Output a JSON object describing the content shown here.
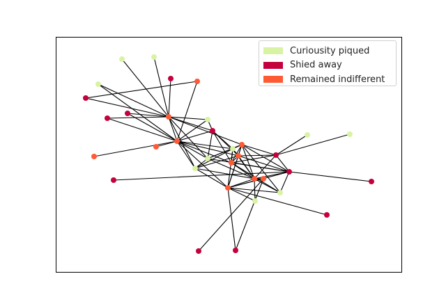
{
  "legend": {
    "items": [
      {
        "label": "Curiousity piqued",
        "color": "#d9f3a4"
      },
      {
        "label": "Shied away",
        "color": "#c5003d"
      },
      {
        "label": "Remained indifferent",
        "color": "#ff5a34"
      }
    ]
  },
  "chart_data": {
    "type": "network",
    "groups": {
      "curious": "Curiousity piqued",
      "shied": "Shied away",
      "indifferent": "Remained indifferent"
    },
    "nodes": [
      {
        "id": "n1",
        "group": "curious"
      },
      {
        "id": "n2",
        "group": "curious"
      },
      {
        "id": "n3",
        "group": "shied"
      },
      {
        "id": "n4",
        "group": "indifferent"
      },
      {
        "id": "n5",
        "group": "curious"
      },
      {
        "id": "n6",
        "group": "indifferent"
      },
      {
        "id": "n7",
        "group": "shied"
      },
      {
        "id": "n8",
        "group": "shied"
      },
      {
        "id": "n9",
        "group": "indifferent"
      },
      {
        "id": "n10",
        "group": "curious"
      },
      {
        "id": "n11",
        "group": "shied"
      },
      {
        "id": "n12",
        "group": "shied"
      },
      {
        "id": "n13",
        "group": "indifferent"
      },
      {
        "id": "n14",
        "group": "indifferent"
      },
      {
        "id": "n15",
        "group": "curious"
      },
      {
        "id": "n16",
        "group": "curious"
      },
      {
        "id": "n17",
        "group": "curious"
      },
      {
        "id": "n18",
        "group": "indifferent"
      },
      {
        "id": "n19",
        "group": "indifferent"
      },
      {
        "id": "n20",
        "group": "indifferent"
      },
      {
        "id": "n21",
        "group": "shied"
      },
      {
        "id": "n22",
        "group": "indifferent"
      },
      {
        "id": "n23",
        "group": "indifferent"
      },
      {
        "id": "n24",
        "group": "shied"
      },
      {
        "id": "n25",
        "group": "curious"
      },
      {
        "id": "n26",
        "group": "indifferent"
      },
      {
        "id": "n27",
        "group": "curious"
      },
      {
        "id": "n28",
        "group": "curious"
      },
      {
        "id": "n29",
        "group": "shied"
      },
      {
        "id": "n30",
        "group": "curious"
      },
      {
        "id": "n31",
        "group": "shied"
      },
      {
        "id": "n32",
        "group": "shied"
      },
      {
        "id": "n33",
        "group": "shied"
      },
      {
        "id": "n34",
        "group": "shied"
      }
    ],
    "edges": [
      [
        "n1",
        "n6"
      ],
      [
        "n2",
        "n6"
      ],
      [
        "n3",
        "n6"
      ],
      [
        "n5",
        "n6"
      ],
      [
        "n5",
        "n9"
      ],
      [
        "n4",
        "n7"
      ],
      [
        "n7",
        "n6"
      ],
      [
        "n8",
        "n6"
      ],
      [
        "n8",
        "n9"
      ],
      [
        "n6",
        "n9"
      ],
      [
        "n6",
        "n10"
      ],
      [
        "n6",
        "n11"
      ],
      [
        "n6",
        "n16"
      ],
      [
        "n6",
        "n18"
      ],
      [
        "n6",
        "n15"
      ],
      [
        "n4",
        "n9"
      ],
      [
        "n12",
        "n9"
      ],
      [
        "n12",
        "n6"
      ],
      [
        "n13",
        "n9"
      ],
      [
        "n14",
        "n9"
      ],
      [
        "n9",
        "n10"
      ],
      [
        "n9",
        "n11"
      ],
      [
        "n9",
        "n15"
      ],
      [
        "n9",
        "n16"
      ],
      [
        "n9",
        "n17"
      ],
      [
        "n9",
        "n19"
      ],
      [
        "n9",
        "n20"
      ],
      [
        "n9",
        "n23"
      ],
      [
        "n10",
        "n11"
      ],
      [
        "n11",
        "n15"
      ],
      [
        "n11",
        "n17"
      ],
      [
        "n11",
        "n19"
      ],
      [
        "n15",
        "n16"
      ],
      [
        "n15",
        "n18"
      ],
      [
        "n16",
        "n17"
      ],
      [
        "n16",
        "n19"
      ],
      [
        "n16",
        "n22"
      ],
      [
        "n17",
        "n18"
      ],
      [
        "n17",
        "n19"
      ],
      [
        "n17",
        "n20"
      ],
      [
        "n18",
        "n19"
      ],
      [
        "n18",
        "n21"
      ],
      [
        "n18",
        "n20"
      ],
      [
        "n18",
        "n22"
      ],
      [
        "n18",
        "n23"
      ],
      [
        "n19",
        "n20"
      ],
      [
        "n19",
        "n22"
      ],
      [
        "n19",
        "n21"
      ],
      [
        "n19",
        "n24"
      ],
      [
        "n19",
        "n23"
      ],
      [
        "n20",
        "n21"
      ],
      [
        "n20",
        "n22"
      ],
      [
        "n20",
        "n24"
      ],
      [
        "n20",
        "n28"
      ],
      [
        "n21",
        "n22"
      ],
      [
        "n21",
        "n24"
      ],
      [
        "n21",
        "n25"
      ],
      [
        "n21",
        "n30"
      ],
      [
        "n22",
        "n23"
      ],
      [
        "n22",
        "n24"
      ],
      [
        "n22",
        "n26"
      ],
      [
        "n22",
        "n27"
      ],
      [
        "n22",
        "n28"
      ],
      [
        "n23",
        "n24"
      ],
      [
        "n23",
        "n27"
      ],
      [
        "n23",
        "n28"
      ],
      [
        "n23",
        "n29"
      ],
      [
        "n23",
        "n33"
      ],
      [
        "n24",
        "n28"
      ],
      [
        "n24",
        "n31"
      ],
      [
        "n24",
        "n34"
      ],
      [
        "n18",
        "n15"
      ],
      [
        "n16",
        "n23"
      ],
      [
        "n17",
        "n23"
      ],
      [
        "n15",
        "n22"
      ],
      [
        "n18",
        "n28"
      ],
      [
        "n26",
        "n23"
      ],
      [
        "n26",
        "n22"
      ],
      [
        "n26",
        "n32"
      ],
      [
        "n26",
        "n33"
      ],
      [
        "n11",
        "n20"
      ],
      [
        "n17",
        "n22"
      ],
      [
        "n18",
        "n24"
      ],
      [
        "n15",
        "n24"
      ]
    ]
  }
}
